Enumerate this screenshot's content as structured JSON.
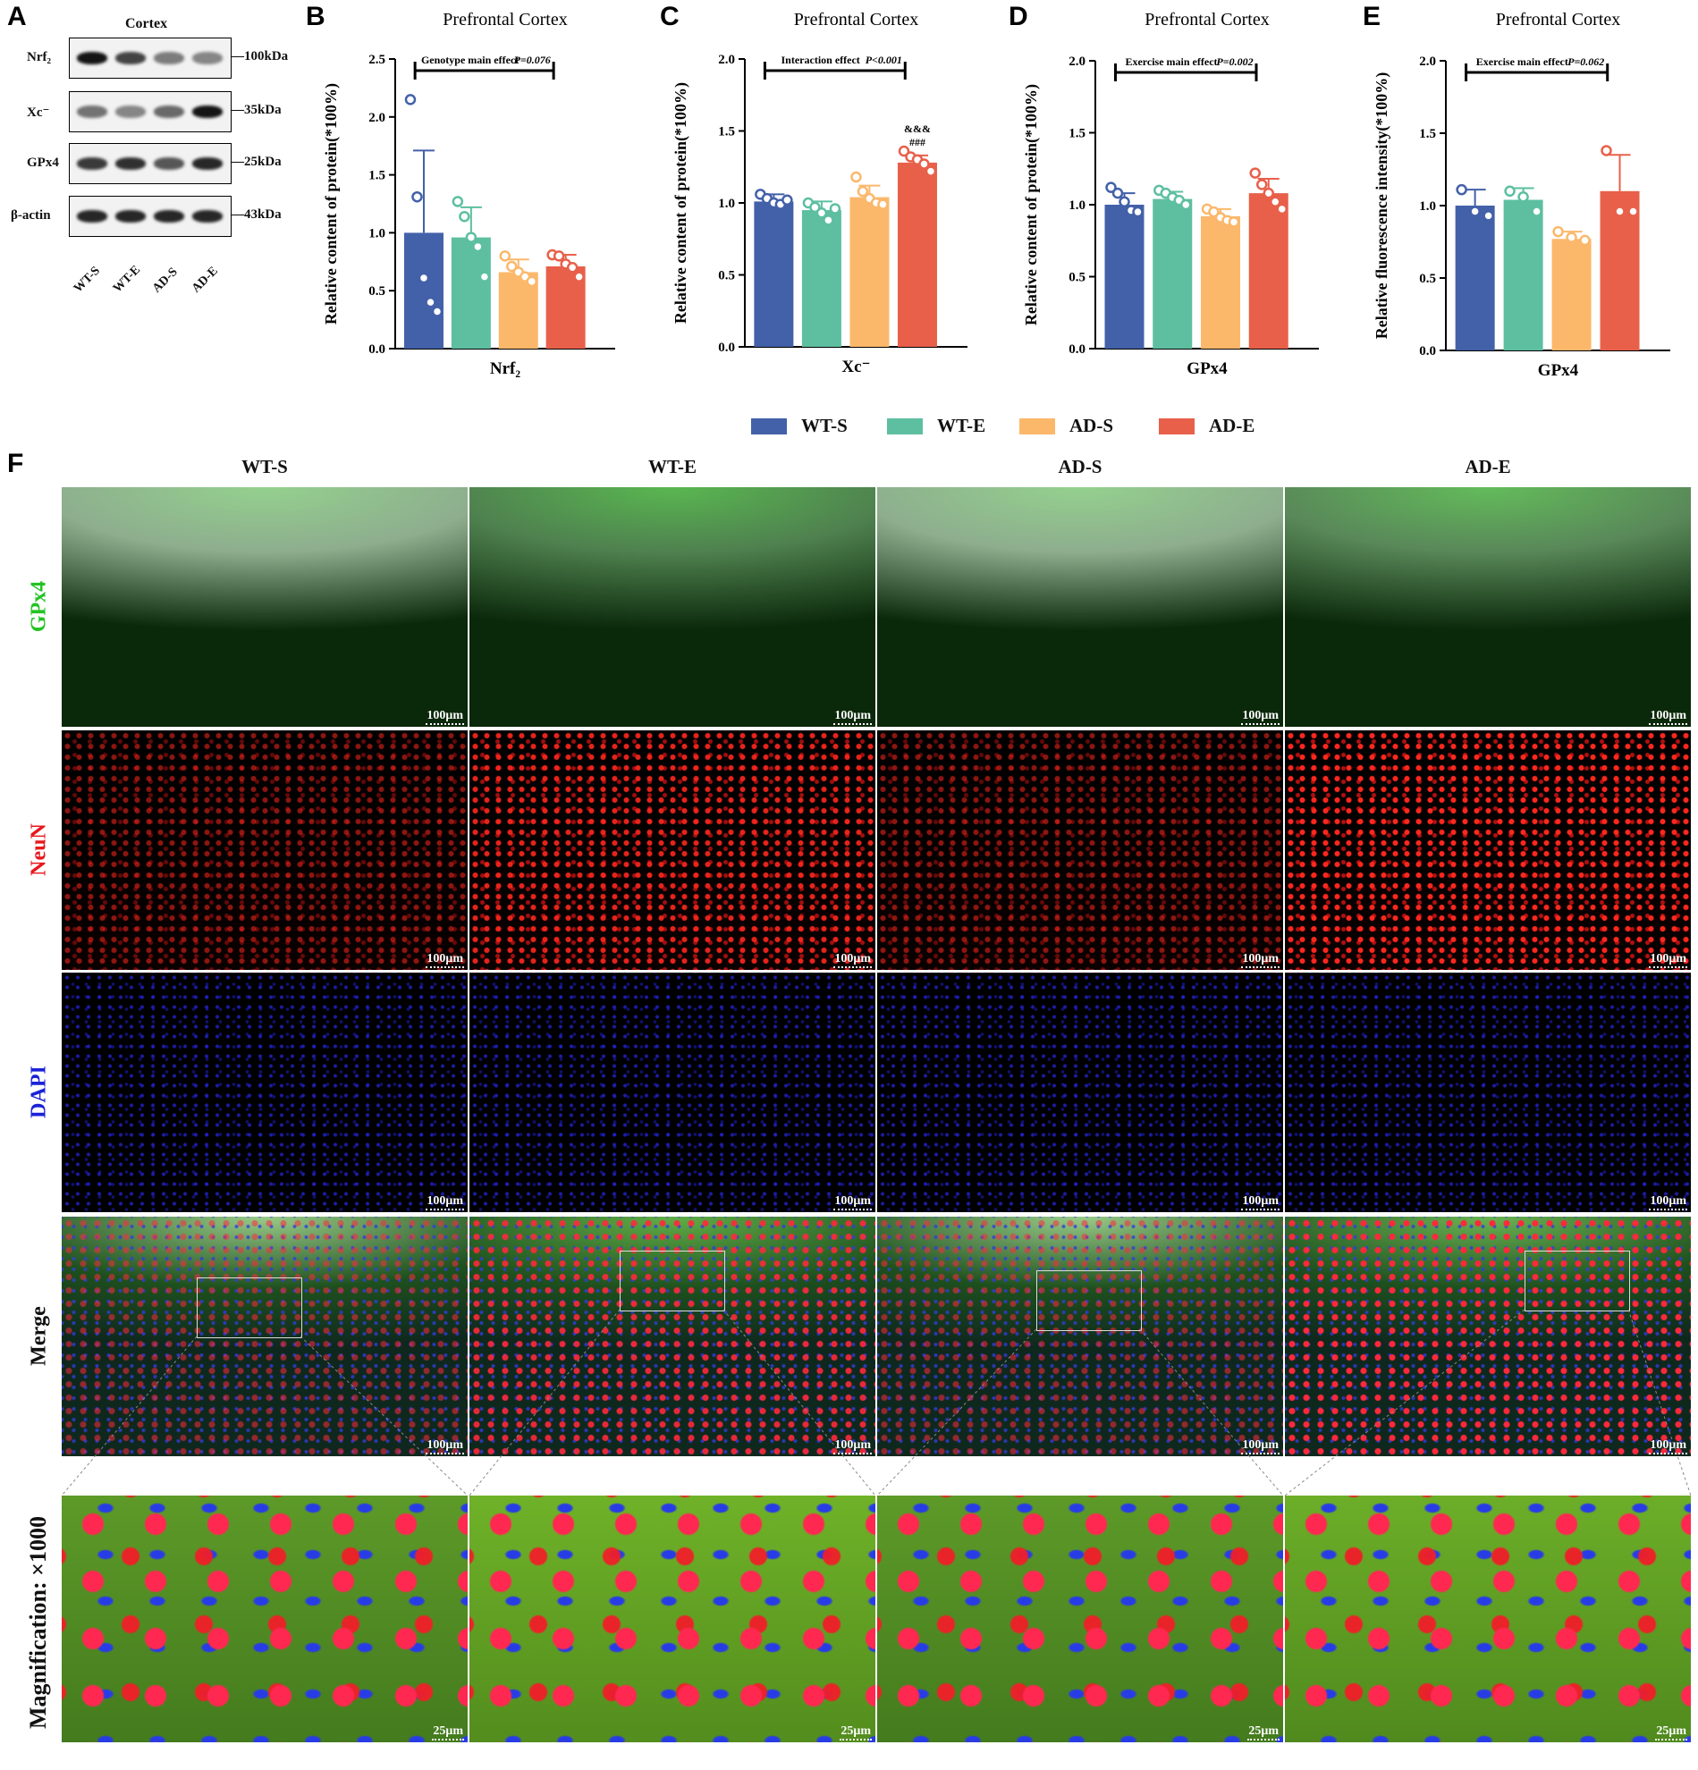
{
  "panels": {
    "A": "A",
    "B": "B",
    "C": "C",
    "D": "D",
    "E": "E",
    "F": "F"
  },
  "blot": {
    "title": "Cortex",
    "rows": [
      {
        "label": "Nrf₂",
        "kda": "100kDa"
      },
      {
        "label": "Xc⁻",
        "kda": "35kDa"
      },
      {
        "label": "GPx4",
        "kda": "25kDa"
      },
      {
        "label": "β-actin",
        "kda": "43kDa"
      }
    ],
    "lanes": [
      "WT-S",
      "WT-E",
      "AD-S",
      "AD-E"
    ],
    "band_intensity": [
      [
        0.95,
        0.7,
        0.4,
        0.35
      ],
      [
        0.45,
        0.35,
        0.5,
        0.95
      ],
      [
        0.75,
        0.8,
        0.6,
        0.85
      ],
      [
        0.85,
        0.85,
        0.85,
        0.85
      ]
    ]
  },
  "colors": {
    "WT-S": "#4361A9",
    "WT-E": "#5DBFA0",
    "AD-S": "#FBB86B",
    "AD-E": "#E8604A"
  },
  "legend": [
    "WT-S",
    "WT-E",
    "AD-S",
    "AD-E"
  ],
  "chart_data": [
    {
      "panel": "B",
      "type": "bar",
      "title": "Prefrontal Cortex",
      "xlabel": "Nrf₂",
      "ylabel": "Relative content of protein(*100%)",
      "ylim": [
        0,
        2.5
      ],
      "yticks": [
        "0.0",
        "0.5",
        "1.0",
        "1.5",
        "2.0",
        "2.5"
      ],
      "categories": [
        "WT-S",
        "WT-E",
        "AD-S",
        "AD-E"
      ],
      "values": [
        1.0,
        0.96,
        0.66,
        0.71
      ],
      "errors": [
        0.71,
        0.26,
        0.11,
        0.1
      ],
      "points": [
        [
          2.15,
          1.31,
          0.61,
          0.4,
          0.32
        ],
        [
          1.27,
          1.14,
          0.96,
          0.88,
          0.62
        ],
        [
          0.8,
          0.71,
          0.66,
          0.62,
          0.58
        ],
        [
          0.81,
          0.8,
          0.73,
          0.7,
          0.62
        ]
      ],
      "annotation": {
        "text": "Genotype main effect",
        "p": "P=0.076"
      }
    },
    {
      "panel": "C",
      "type": "bar",
      "title": "Prefrontal Cortex",
      "xlabel": "Xc⁻",
      "ylabel": "Relative content of protein(*100%)",
      "ylim": [
        0,
        2.0
      ],
      "yticks": [
        "0.0",
        "0.5",
        "1.0",
        "1.5",
        "2.0"
      ],
      "categories": [
        "WT-S",
        "WT-E",
        "AD-S",
        "AD-E"
      ],
      "values": [
        1.01,
        0.95,
        1.04,
        1.28
      ],
      "errors": [
        0.05,
        0.06,
        0.08,
        0.05
      ],
      "points": [
        [
          1.06,
          1.03,
          1.0,
          0.99,
          1.02
        ],
        [
          1.0,
          0.97,
          0.93,
          0.88,
          0.96
        ],
        [
          1.18,
          1.08,
          1.03,
          1.0,
          0.99
        ],
        [
          1.36,
          1.32,
          1.3,
          1.27,
          1.22
        ]
      ],
      "annotation": {
        "text": "Interaction effect",
        "p": "P<0.001"
      },
      "marks": [
        "&&&",
        "###"
      ]
    },
    {
      "panel": "D",
      "type": "bar",
      "title": "Prefrontal Cortex",
      "xlabel": "GPx4",
      "ylabel": "Relative content of protein(*100%)",
      "ylim": [
        0,
        2.0
      ],
      "yticks": [
        "0.0",
        "0.5",
        "1.0",
        "1.5",
        "2.0"
      ],
      "categories": [
        "WT-S",
        "WT-E",
        "AD-S",
        "AD-E"
      ],
      "values": [
        1.0,
        1.04,
        0.92,
        1.08
      ],
      "errors": [
        0.08,
        0.05,
        0.05,
        0.1
      ],
      "points": [
        [
          1.12,
          1.08,
          1.02,
          0.96,
          0.95
        ],
        [
          1.1,
          1.08,
          1.05,
          1.03,
          1.0
        ],
        [
          0.97,
          0.95,
          0.91,
          0.89,
          0.88
        ],
        [
          1.22,
          1.14,
          1.08,
          1.02,
          0.97
        ]
      ],
      "annotation": {
        "text": "Exercise main effect",
        "p": "P=0.002"
      }
    },
    {
      "panel": "E",
      "type": "bar",
      "title": "Prefrontal Cortex",
      "xlabel": "GPx4",
      "ylabel": "Relative fluorescence intensity(*100%)",
      "ylim": [
        0,
        2.0
      ],
      "yticks": [
        "0.0",
        "0.5",
        "1.0",
        "1.5",
        "2.0"
      ],
      "categories": [
        "WT-S",
        "WT-E",
        "AD-S",
        "AD-E"
      ],
      "values": [
        1.0,
        1.04,
        0.77,
        1.1
      ],
      "errors": [
        0.11,
        0.08,
        0.05,
        0.25
      ],
      "points": [
        [
          1.11,
          0.96,
          0.93
        ],
        [
          1.1,
          1.06,
          0.96
        ],
        [
          0.82,
          0.78,
          0.76
        ],
        [
          1.38,
          0.96,
          0.96
        ]
      ],
      "annotation": {
        "text": "Exercise main effect",
        "p": "P=0.062"
      }
    }
  ],
  "microscopy": {
    "columns": [
      "WT-S",
      "WT-E",
      "AD-S",
      "AD-E"
    ],
    "rows": [
      "GPx4",
      "NeuN",
      "DAPI",
      "Merge"
    ],
    "row_colors": [
      "#22c322",
      "#e8171c",
      "#1a22d8",
      "#111111"
    ],
    "scale_main": "100μm",
    "magnification_label": "Magnification: ×1000",
    "scale_zoom": "25μm",
    "intensity": {
      "GPx4": [
        0.55,
        0.85,
        0.55,
        0.8
      ],
      "NeuN": [
        0.55,
        0.9,
        0.55,
        1.0
      ],
      "DAPI": [
        0.7,
        0.7,
        0.7,
        0.7
      ]
    }
  }
}
